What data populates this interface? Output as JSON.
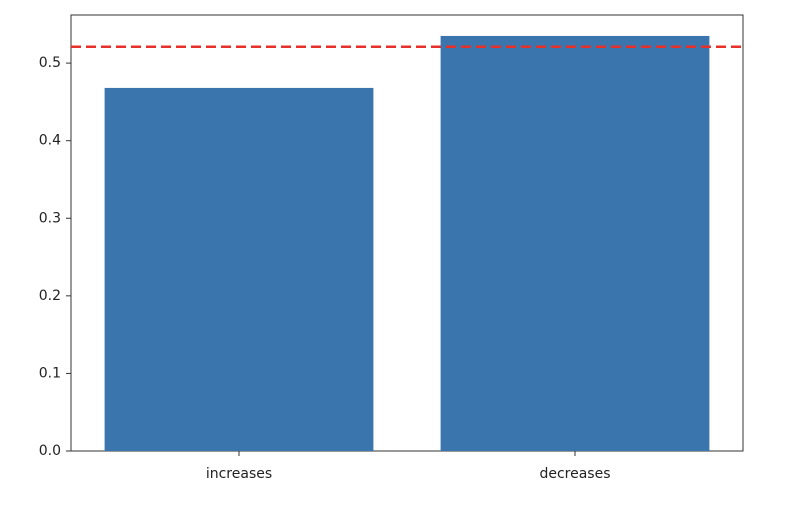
{
  "chart_data": {
    "type": "bar",
    "categories": [
      "increases",
      "decreases"
    ],
    "values": [
      0.468,
      0.535
    ],
    "color": "#3a75ae",
    "ylim": [
      0,
      0.562
    ],
    "yticks": [
      {
        "value": 0,
        "label": "0.0"
      },
      0.1,
      0.2,
      0.3,
      0.4,
      0.5
    ],
    "grid": false,
    "reference_lines": [
      {
        "value": 0.521,
        "color": "#e8302a",
        "style": "dashed"
      }
    ]
  }
}
